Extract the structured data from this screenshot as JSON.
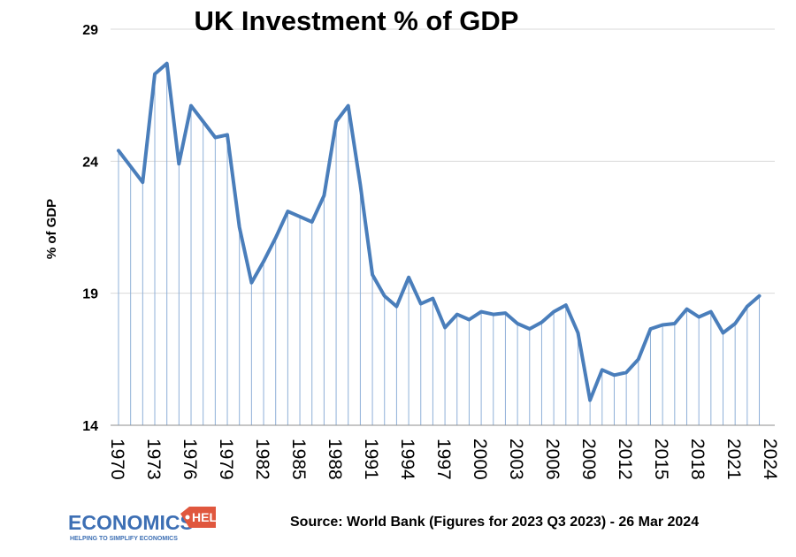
{
  "chart_data": {
    "type": "line",
    "title": "UK Investment % of GDP",
    "xlabel": "",
    "ylabel": "% of GDP",
    "ylim": [
      14,
      29
    ],
    "yticks": [
      14,
      19,
      24,
      29
    ],
    "xtick_labels": [
      "1970",
      "1973",
      "1976",
      "1979",
      "1982",
      "1985",
      "1988",
      "1991",
      "1994",
      "1997",
      "2000",
      "2003",
      "2006",
      "2009",
      "2012",
      "2015",
      "2018",
      "2021",
      "2024"
    ],
    "grid": true,
    "x": [
      1970,
      1971,
      1972,
      1973,
      1974,
      1975,
      1976,
      1977,
      1978,
      1979,
      1980,
      1981,
      1982,
      1983,
      1984,
      1985,
      1986,
      1987,
      1988,
      1989,
      1990,
      1991,
      1992,
      1993,
      1994,
      1995,
      1996,
      1997,
      1998,
      1999,
      2000,
      2001,
      2002,
      2003,
      2004,
      2005,
      2006,
      2007,
      2008,
      2009,
      2010,
      2011,
      2012,
      2013,
      2014,
      2015,
      2016,
      2017,
      2018,
      2019,
      2020,
      2021,
      2022,
      2023
    ],
    "series": [
      {
        "name": "UK Investment % of GDP",
        "color": "#4f81bd",
        "values": [
          24.4,
          23.8,
          23.2,
          27.3,
          27.7,
          23.9,
          26.1,
          25.5,
          24.9,
          25.0,
          21.5,
          19.4,
          20.2,
          21.1,
          22.1,
          21.9,
          21.7,
          22.7,
          25.5,
          26.1,
          23.1,
          19.7,
          18.9,
          18.5,
          19.6,
          18.6,
          18.8,
          17.7,
          18.2,
          18.0,
          18.3,
          18.2,
          18.25,
          17.85,
          17.65,
          17.9,
          18.3,
          18.55,
          17.5,
          14.95,
          16.1,
          15.9,
          16.0,
          16.5,
          17.65,
          17.8,
          17.85,
          18.4,
          18.1,
          18.3,
          17.5,
          17.85,
          18.5,
          18.9
        ]
      }
    ]
  },
  "footer": {
    "source": "Source: World Bank (Figures for 2023 Q3 2023) - 26 Mar 2024"
  },
  "logo": {
    "main": "ECONOMICS",
    "badge": "HELP",
    "tagline": "HELPING TO SIMPLIFY ECONOMICS"
  }
}
